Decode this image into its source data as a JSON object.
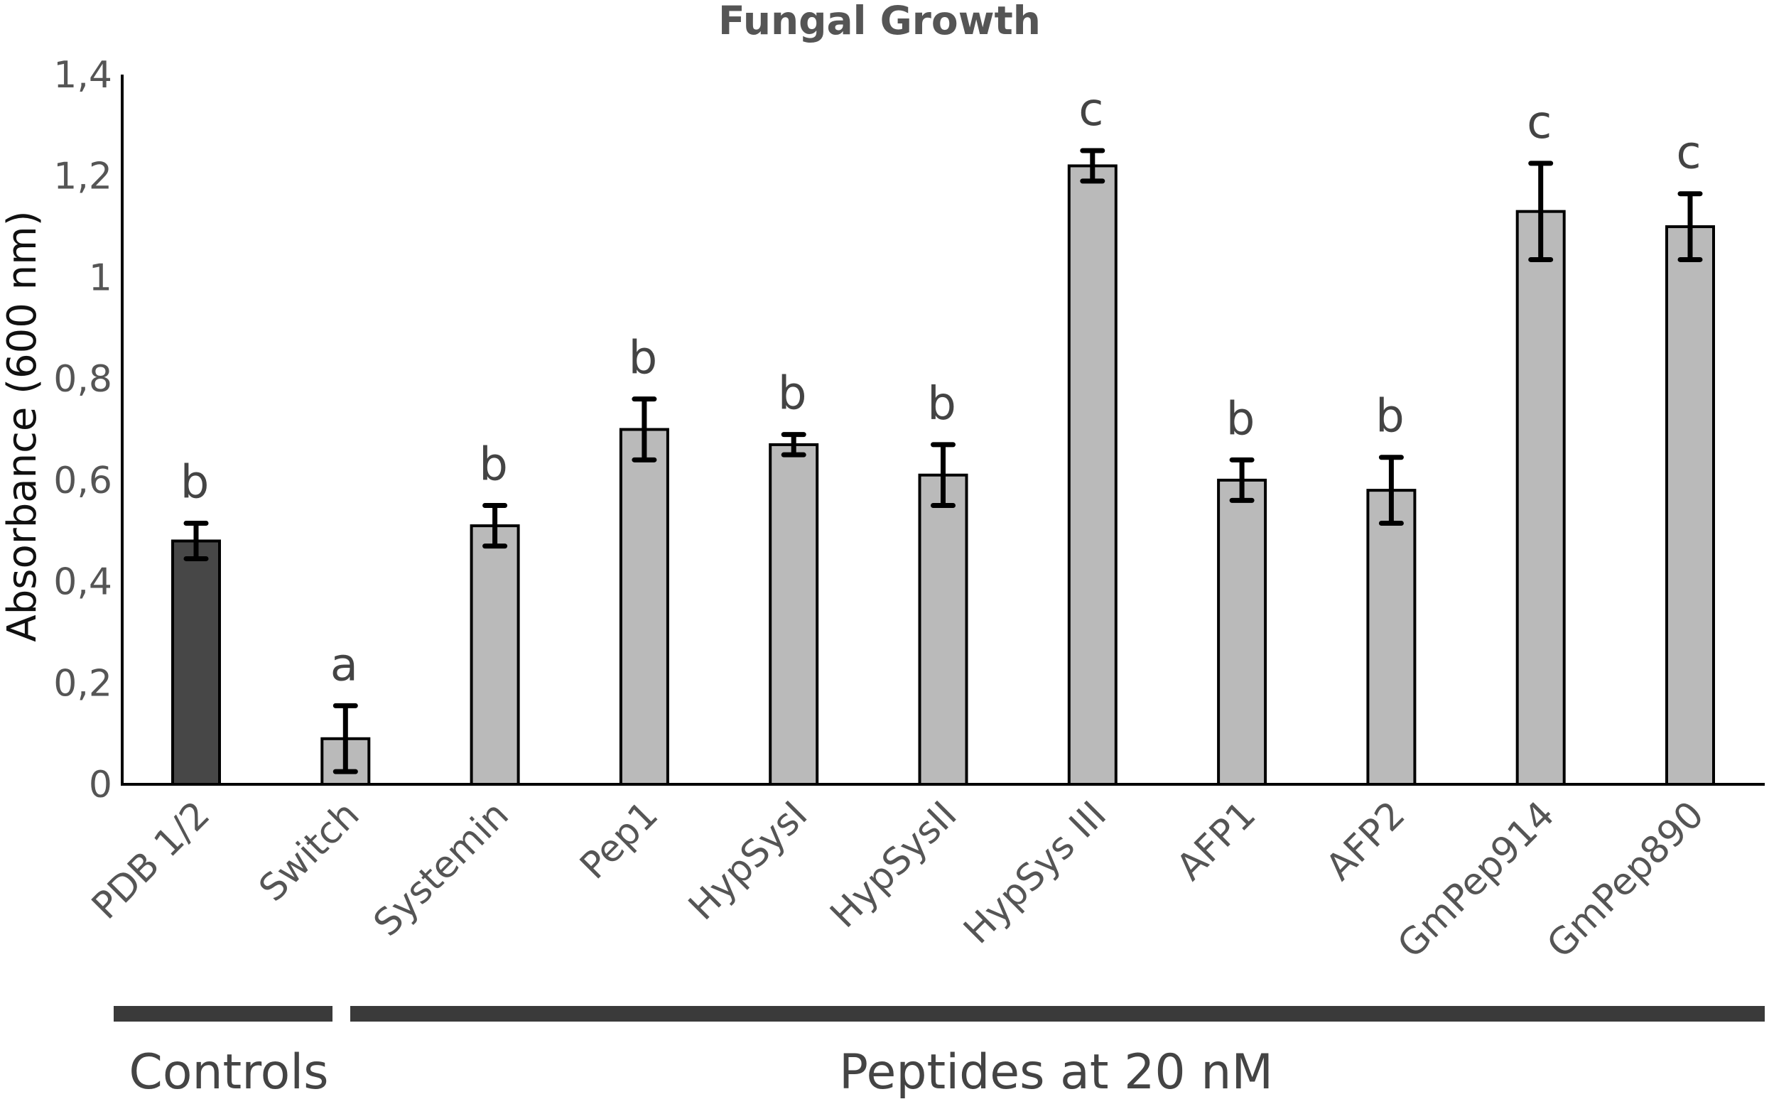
{
  "chart_data": {
    "type": "bar",
    "title": "Fungal Growth",
    "xlabel": "",
    "ylabel": "Absorbance  (600 nm)",
    "ylim": [
      0,
      1.4
    ],
    "yticks": [
      "0",
      "0,2",
      "0,4",
      "0,6",
      "0,8",
      "1",
      "1,2",
      "1,4"
    ],
    "ytick_values": [
      0,
      0.2,
      0.4,
      0.6,
      0.8,
      1.0,
      1.2,
      1.4
    ],
    "categories": [
      "PDB 1/2",
      "Switch",
      "Systemin",
      "Pep1",
      "HypSysI",
      "HypSysII",
      "HypSys III",
      "AFP1",
      "AFP2",
      "GmPep914",
      "GmPep890"
    ],
    "values": [
      0.48,
      0.09,
      0.51,
      0.7,
      0.67,
      0.61,
      1.22,
      0.6,
      0.58,
      1.13,
      1.1
    ],
    "errors": [
      0.035,
      0.065,
      0.04,
      0.06,
      0.02,
      0.06,
      0.03,
      0.04,
      0.065,
      0.095,
      0.065
    ],
    "significance": [
      "b",
      "a",
      "b",
      "b",
      "b",
      "b",
      "c",
      "b",
      "b",
      "c",
      "c"
    ],
    "bar_colors": [
      "#474747",
      "#bababa",
      "#bababa",
      "#bababa",
      "#bababa",
      "#bababa",
      "#bababa",
      "#bababa",
      "#bababa",
      "#bababa",
      "#bababa"
    ],
    "groups": [
      {
        "label": "Controls",
        "categories": [
          "PDB 1/2",
          "Switch"
        ]
      },
      {
        "label": "Peptides at 20 nM",
        "categories": [
          "Systemin",
          "Pep1",
          "HypSysI",
          "HypSysII",
          "HypSys III",
          "AFP1",
          "AFP2",
          "GmPep914",
          "GmPep890"
        ]
      }
    ],
    "grid": false
  },
  "colors": {
    "axis": "#000000",
    "group_bar": "#3a3a3a"
  }
}
